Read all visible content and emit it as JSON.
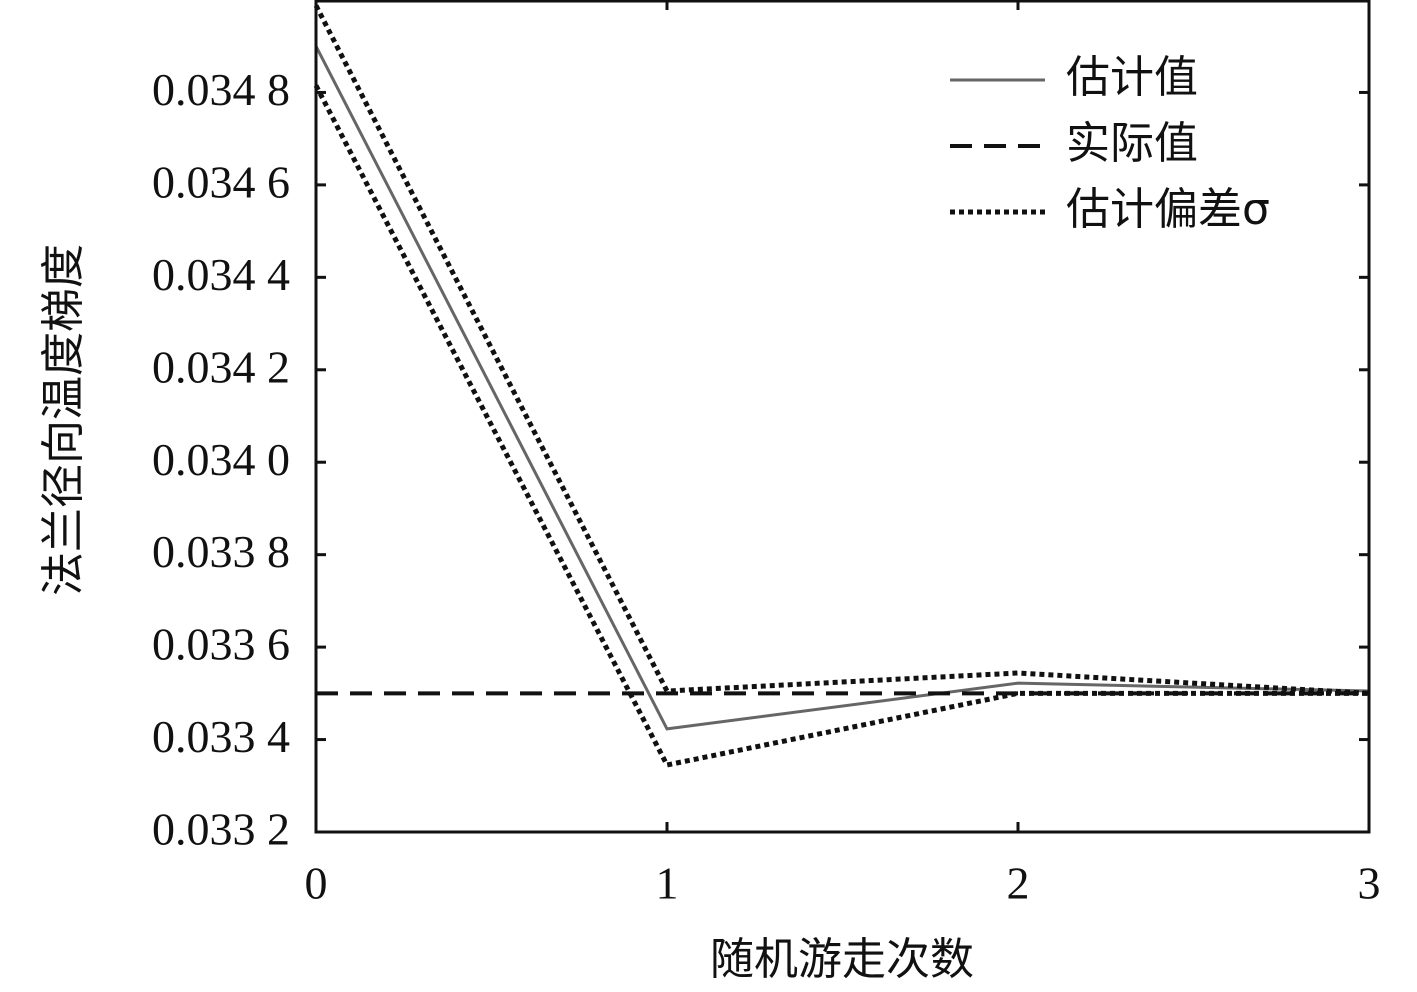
{
  "chart_data": {
    "type": "line",
    "x_label": "随机游走次数",
    "y_label": "法兰径向温度梯度",
    "x": [
      0,
      1,
      2,
      3
    ],
    "xlim": [
      0,
      3
    ],
    "xticks": [
      0,
      1,
      2,
      3
    ],
    "ylim": [
      0.0332,
      0.035
    ],
    "yticks": [
      {
        "value": 0.0332,
        "label": "0.033 2"
      },
      {
        "value": 0.0334,
        "label": "0.033 4"
      },
      {
        "value": 0.0336,
        "label": "0.033 6"
      },
      {
        "value": 0.0338,
        "label": "0.033 8"
      },
      {
        "value": 0.034,
        "label": "0.034 0"
      },
      {
        "value": 0.0342,
        "label": "0.034 2"
      },
      {
        "value": 0.0344,
        "label": "0.034 4"
      },
      {
        "value": 0.0346,
        "label": "0.034 6"
      },
      {
        "value": 0.0348,
        "label": "0.034 8"
      }
    ],
    "legend": "upper right",
    "series": [
      {
        "name": "估计值",
        "color": "#666666",
        "style": "solid",
        "values": [
          0.0349,
          0.033423,
          0.033522,
          0.033505
        ]
      },
      {
        "name": "实际值",
        "color": "#111111",
        "style": "dashed",
        "values": [
          0.0335,
          0.0335,
          0.0335,
          0.0335
        ]
      },
      {
        "name": "估计偏差σ",
        "color": "#111111",
        "style": "dotted",
        "values": [
          0.034988,
          0.033505,
          0.033544,
          0.0335
        ],
        "values_lower": [
          0.034815,
          0.033345,
          0.0335,
          0.0335
        ]
      }
    ]
  }
}
